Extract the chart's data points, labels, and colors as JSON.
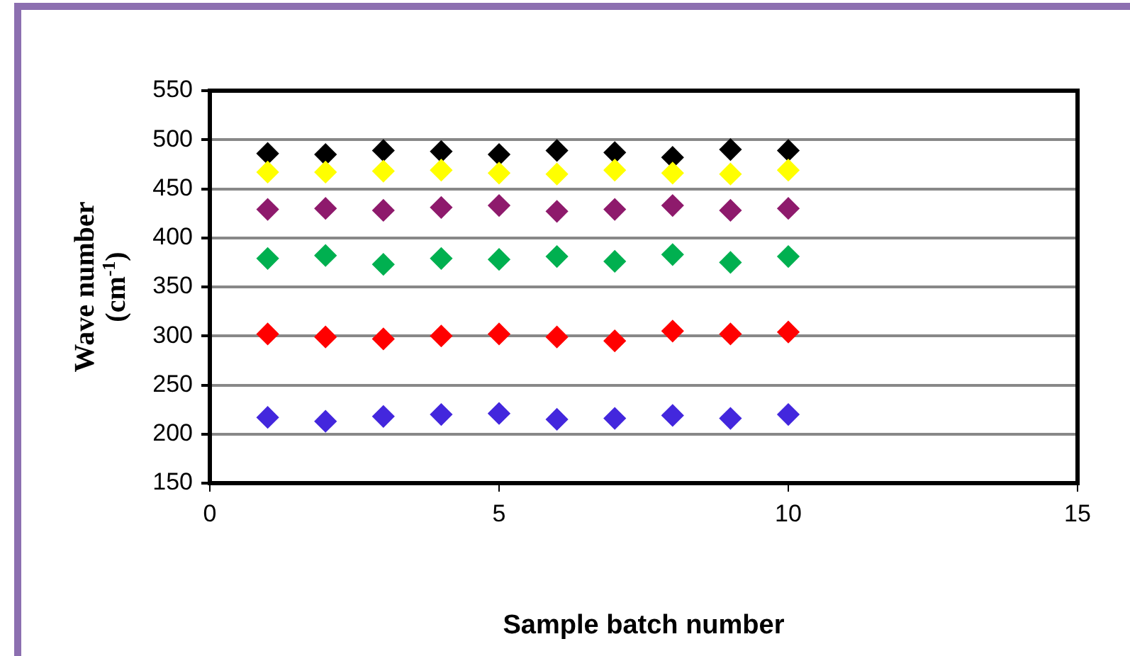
{
  "chart_data": {
    "type": "scatter",
    "xlabel": "Sample batch number",
    "ylabel": "Wave number (cm$^{-1}$)",
    "x": [
      1,
      2,
      3,
      4,
      5,
      6,
      7,
      8,
      9,
      10
    ],
    "series": [
      {
        "color": "#4327dd",
        "values": [
          217,
          213,
          218,
          220,
          221,
          215,
          216,
          219,
          216,
          220
        ]
      },
      {
        "color": "#ff0000",
        "values": [
          302,
          299,
          297,
          300,
          302,
          299,
          295,
          305,
          302,
          304
        ]
      },
      {
        "color": "#00b050",
        "values": [
          379,
          382,
          373,
          379,
          378,
          381,
          376,
          383,
          375,
          381
        ]
      },
      {
        "color": "#8e1a6c",
        "values": [
          429,
          430,
          428,
          431,
          433,
          427,
          429,
          433,
          428,
          430
        ]
      },
      {
        "color": "#ffff00",
        "values": [
          467,
          467,
          468,
          469,
          466,
          465,
          469,
          466,
          465,
          469
        ]
      },
      {
        "color": "#000000",
        "values": [
          486,
          485,
          489,
          488,
          485,
          489,
          487,
          482,
          490,
          489
        ]
      }
    ],
    "xlim": [
      0,
      15
    ],
    "xticks": [
      0,
      5,
      10,
      15
    ],
    "ylim": [
      150,
      550
    ],
    "yticks": [
      150,
      200,
      250,
      300,
      350,
      400,
      450,
      500,
      550
    ],
    "grid": "y",
    "marker": "diamond",
    "legend": false
  }
}
